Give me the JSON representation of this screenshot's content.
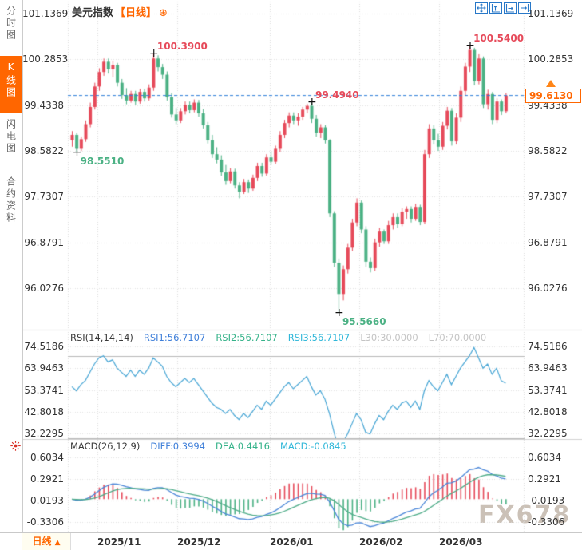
{
  "sidebar": {
    "tabs": [
      {
        "label": "分时图",
        "active": false
      },
      {
        "label": "K线图",
        "active": true
      },
      {
        "label": "闪电图",
        "active": false
      },
      {
        "label": "合约资料",
        "active": false
      }
    ]
  },
  "header": {
    "title": "美元指数",
    "period": "【日线】",
    "add_icon": "⊕"
  },
  "bottom_bar": {
    "period_label": "日线",
    "arrow": "▲"
  },
  "watermark": "FX678",
  "colors": {
    "accent": "#ff6600",
    "up": "#e64a5a",
    "down": "#4bb184",
    "current_line": "#2f7ed8",
    "rsi_line": "#44a4d4",
    "diff_line": "#4a86d8",
    "dea_line": "#4cab87",
    "grid": "#d6d6d6",
    "level_line": "#b8b8b8"
  },
  "chart_data": [
    {
      "type": "candlestick",
      "title": "美元指数 日线",
      "y_ticks": [
        "101.1369",
        "100.2853",
        "99.4338",
        "98.5822",
        "97.7307",
        "96.8791",
        "96.0276"
      ],
      "x_ticks": [
        "2025/11",
        "2025/12",
        "2026/01",
        "2026/02",
        "2026/03"
      ],
      "current_price": "99.6130",
      "current_price_value": 99.613,
      "annotations": [
        {
          "label": "100.3900",
          "index": 18,
          "at": "high",
          "color": "up"
        },
        {
          "label": "98.5510",
          "index": 1,
          "at": "low",
          "color": "down"
        },
        {
          "label": "99.4940",
          "index": 53,
          "at": "high",
          "color": "up"
        },
        {
          "label": "100.5400",
          "index": 88,
          "at": "high",
          "color": "up"
        },
        {
          "label": "95.5660",
          "index": 59,
          "at": "low",
          "color": "down"
        }
      ],
      "candles": [
        [
          98.78,
          98.95,
          98.66,
          98.88
        ],
        [
          98.88,
          98.92,
          98.551,
          98.62
        ],
        [
          98.62,
          98.85,
          98.58,
          98.8
        ],
        [
          98.8,
          99.15,
          98.75,
          99.08
        ],
        [
          99.08,
          99.48,
          99.02,
          99.4
        ],
        [
          99.4,
          99.85,
          99.35,
          99.78
        ],
        [
          99.78,
          100.12,
          99.7,
          100.05
        ],
        [
          100.05,
          100.3,
          99.98,
          100.24
        ],
        [
          100.24,
          100.3,
          100.02,
          100.1
        ],
        [
          100.1,
          100.26,
          99.95,
          100.18
        ],
        [
          100.18,
          100.22,
          99.78,
          99.85
        ],
        [
          99.85,
          99.92,
          99.55,
          99.62
        ],
        [
          99.62,
          99.75,
          99.45,
          99.52
        ],
        [
          99.52,
          99.7,
          99.48,
          99.64
        ],
        [
          99.64,
          99.7,
          99.44,
          99.5
        ],
        [
          99.5,
          99.74,
          99.46,
          99.68
        ],
        [
          99.68,
          99.74,
          99.5,
          99.56
        ],
        [
          99.56,
          99.82,
          99.52,
          99.76
        ],
        [
          99.76,
          100.39,
          99.7,
          100.3
        ],
        [
          100.3,
          100.36,
          100.06,
          100.14
        ],
        [
          100.14,
          100.2,
          99.92,
          100.0
        ],
        [
          100.0,
          100.06,
          99.52,
          99.58
        ],
        [
          99.58,
          99.66,
          99.2,
          99.26
        ],
        [
          99.26,
          99.38,
          99.08,
          99.15
        ],
        [
          99.15,
          99.38,
          99.1,
          99.32
        ],
        [
          99.32,
          99.5,
          99.26,
          99.44
        ],
        [
          99.44,
          99.5,
          99.28,
          99.34
        ],
        [
          99.34,
          99.54,
          99.3,
          99.48
        ],
        [
          99.48,
          99.53,
          99.22,
          99.28
        ],
        [
          99.28,
          99.36,
          99.0,
          99.06
        ],
        [
          99.06,
          99.12,
          98.72,
          98.78
        ],
        [
          98.78,
          98.88,
          98.45,
          98.52
        ],
        [
          98.52,
          98.65,
          98.35,
          98.42
        ],
        [
          98.42,
          98.5,
          98.12,
          98.18
        ],
        [
          98.18,
          98.32,
          97.95,
          98.02
        ],
        [
          98.02,
          98.26,
          97.98,
          98.2
        ],
        [
          98.2,
          98.25,
          97.88,
          97.94
        ],
        [
          97.94,
          98.0,
          97.7,
          97.82
        ],
        [
          97.82,
          98.06,
          97.78,
          98.0
        ],
        [
          98.0,
          98.05,
          97.8,
          97.88
        ],
        [
          97.88,
          98.14,
          97.84,
          98.08
        ],
        [
          98.08,
          98.36,
          98.02,
          98.3
        ],
        [
          98.3,
          98.36,
          98.1,
          98.16
        ],
        [
          98.16,
          98.52,
          98.12,
          98.46
        ],
        [
          98.46,
          98.56,
          98.32,
          98.38
        ],
        [
          98.38,
          98.68,
          98.34,
          98.62
        ],
        [
          98.62,
          98.95,
          98.56,
          98.88
        ],
        [
          98.88,
          99.16,
          98.82,
          99.1
        ],
        [
          99.1,
          99.3,
          99.02,
          99.24
        ],
        [
          99.24,
          99.3,
          99.08,
          99.15
        ],
        [
          99.15,
          99.28,
          99.05,
          99.22
        ],
        [
          99.22,
          99.4,
          99.16,
          99.35
        ],
        [
          99.35,
          99.46,
          99.28,
          99.42
        ],
        [
          99.42,
          99.494,
          99.1,
          99.18
        ],
        [
          99.18,
          99.25,
          98.85,
          98.92
        ],
        [
          98.92,
          99.08,
          98.82,
          99.02
        ],
        [
          99.02,
          99.06,
          98.72,
          98.78
        ],
        [
          98.78,
          98.8,
          97.35,
          97.42
        ],
        [
          97.42,
          97.46,
          96.42,
          96.5
        ],
        [
          96.5,
          96.58,
          95.566,
          95.92
        ],
        [
          95.92,
          96.45,
          95.8,
          96.38
        ],
        [
          96.38,
          96.85,
          96.3,
          96.78
        ],
        [
          96.78,
          97.32,
          96.72,
          97.25
        ],
        [
          97.25,
          97.7,
          97.18,
          97.62
        ],
        [
          97.62,
          97.66,
          97.05,
          97.12
        ],
        [
          97.12,
          97.18,
          96.42,
          96.52
        ],
        [
          96.52,
          96.6,
          96.32,
          96.4
        ],
        [
          96.4,
          96.95,
          96.35,
          96.88
        ],
        [
          96.88,
          97.15,
          96.8,
          97.08
        ],
        [
          97.08,
          97.12,
          96.85,
          96.9
        ],
        [
          96.9,
          97.28,
          96.85,
          97.2
        ],
        [
          97.2,
          97.42,
          97.12,
          97.35
        ],
        [
          97.35,
          97.42,
          97.15,
          97.22
        ],
        [
          97.22,
          97.52,
          97.18,
          97.45
        ],
        [
          97.45,
          97.55,
          97.32,
          97.5
        ],
        [
          97.5,
          97.55,
          97.25,
          97.32
        ],
        [
          97.32,
          97.6,
          97.28,
          97.54
        ],
        [
          97.54,
          97.58,
          97.2,
          97.26
        ],
        [
          97.26,
          98.6,
          97.22,
          98.52
        ],
        [
          98.52,
          99.08,
          98.45,
          99.0
        ],
        [
          99.0,
          99.06,
          98.7,
          98.78
        ],
        [
          98.78,
          98.9,
          98.58,
          98.66
        ],
        [
          98.66,
          99.12,
          98.6,
          99.05
        ],
        [
          99.05,
          99.4,
          98.98,
          99.33
        ],
        [
          99.33,
          99.38,
          98.68,
          98.76
        ],
        [
          98.76,
          99.28,
          98.7,
          99.2
        ],
        [
          99.2,
          99.78,
          99.12,
          99.7
        ],
        [
          99.7,
          100.22,
          99.62,
          100.15
        ],
        [
          100.15,
          100.54,
          100.05,
          100.46
        ],
        [
          100.46,
          100.5,
          99.8,
          99.88
        ],
        [
          99.88,
          100.38,
          99.82,
          100.3
        ],
        [
          100.3,
          100.34,
          99.38,
          99.45
        ],
        [
          99.45,
          99.72,
          99.35,
          99.64
        ],
        [
          99.64,
          99.68,
          99.08,
          99.16
        ],
        [
          99.16,
          99.56,
          99.1,
          99.5
        ],
        [
          99.5,
          99.54,
          99.25,
          99.32
        ],
        [
          99.32,
          99.66,
          99.28,
          99.613
        ]
      ]
    },
    {
      "type": "line",
      "name": "RSI",
      "header": {
        "name": "RSI(14,14,14)",
        "rsi1": "RSI1:56.7107",
        "rsi2": "RSI2:56.7107",
        "rsi3": "RSI3:56.7107",
        "l30": "L30:30.0000",
        "l70": "L70:70.0000"
      },
      "y_ticks": [
        "74.5186",
        "63.9463",
        "53.3741",
        "42.8018",
        "32.2295"
      ],
      "levels": [
        70,
        30
      ],
      "values": [
        55,
        53,
        56,
        58,
        62,
        66,
        69,
        70,
        67,
        68,
        64,
        62,
        60,
        63,
        60,
        63,
        61,
        64,
        69,
        67,
        65,
        60,
        57,
        55,
        57,
        59,
        57,
        59,
        56,
        53,
        50,
        47,
        45,
        44,
        42,
        44,
        41,
        39,
        42,
        40,
        43,
        46,
        44,
        48,
        46,
        49,
        52,
        55,
        57,
        54,
        56,
        58,
        60,
        55,
        51,
        53,
        49,
        42,
        33,
        25,
        28,
        32,
        37,
        42,
        39,
        33,
        32,
        37,
        41,
        39,
        43,
        46,
        44,
        47,
        48,
        45,
        48,
        44,
        53,
        58,
        55,
        53,
        57,
        61,
        56,
        60,
        64,
        67,
        70,
        74,
        69,
        64,
        66,
        61,
        64,
        58,
        56.71
      ]
    },
    {
      "type": "macd",
      "name": "MACD",
      "params": [
        26,
        12,
        9
      ],
      "header": {
        "name": "MACD(26,12,9)",
        "diff": "DIFF:0.3994",
        "dea": "DEA:0.4416",
        "macd": "MACD:-0.0845"
      },
      "y_ticks": [
        "0.6034",
        "0.2921",
        "-0.0193",
        "-0.3306"
      ]
    }
  ]
}
